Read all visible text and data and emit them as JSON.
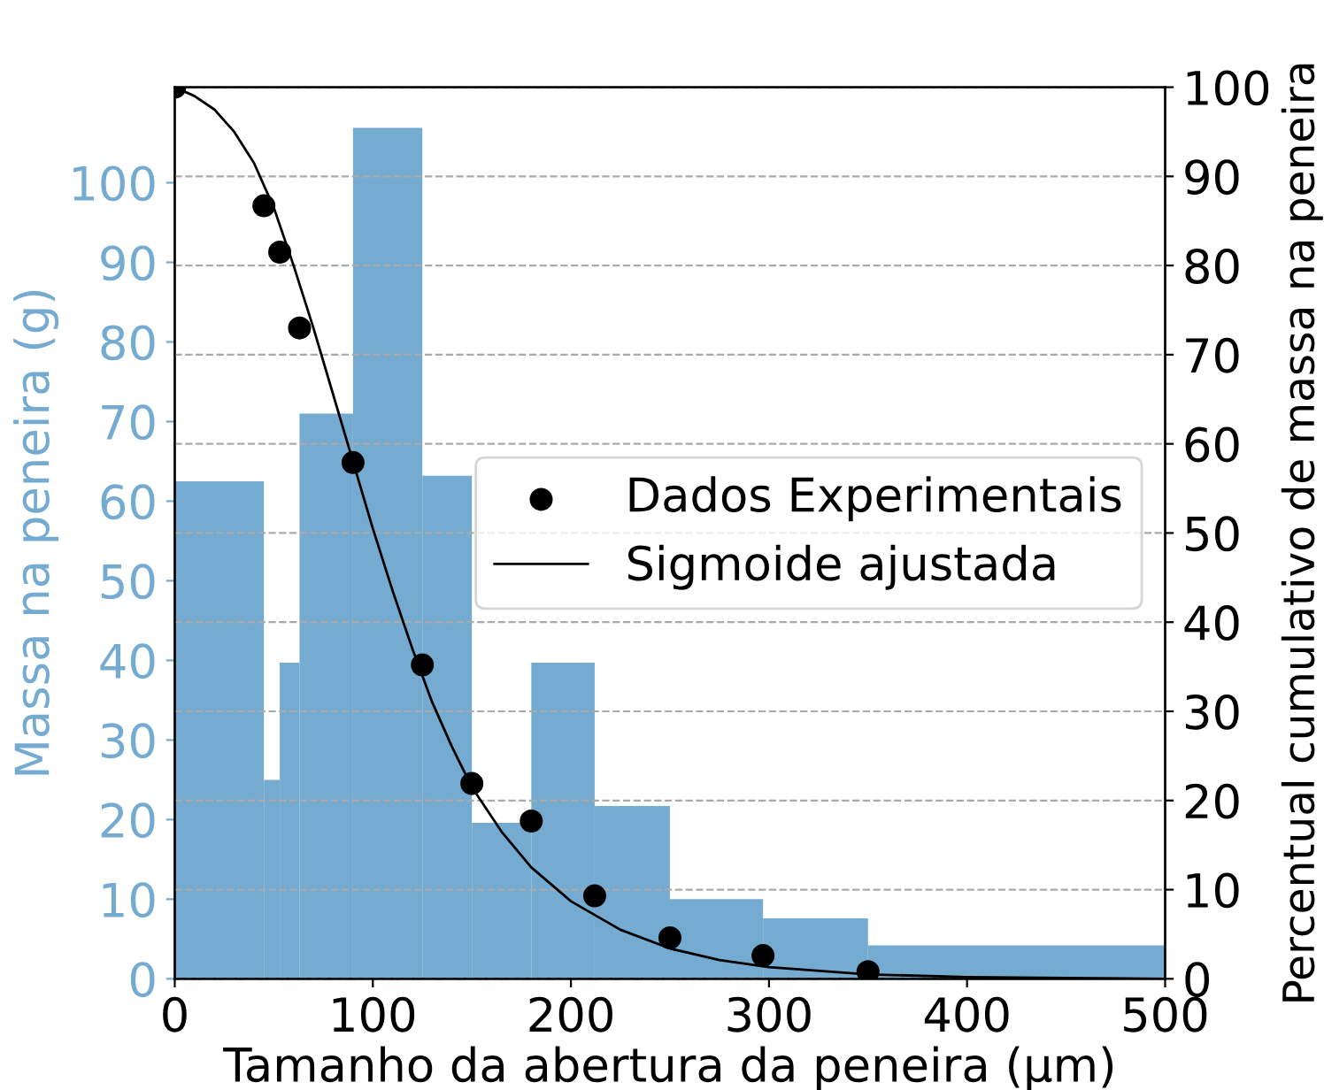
{
  "chart_data": {
    "type": "histogram",
    "xlabel": "Tamanho da abertura da peneira (µm)",
    "ylabel": "Massa na peneira (g)",
    "y2label": "Percentual cumulativo de massa na peneira",
    "bins": [
      0,
      45,
      53,
      63,
      90,
      125,
      150,
      180,
      212,
      250,
      297,
      350,
      500
    ],
    "values": [
      62.5,
      25,
      39.7,
      71,
      106.9,
      63.2,
      19.6,
      39.7,
      21.7,
      10,
      7.6,
      4.2
    ],
    "color": "#76abd1",
    "series": [
      {
        "name": "Dados Experimentais",
        "type": "scatter",
        "axis": "y2",
        "color": "#000000",
        "marker": "circle",
        "x": [
          0,
          45,
          53,
          63,
          90,
          125,
          150,
          180,
          212,
          250,
          297,
          350
        ],
        "values": [
          100,
          86.7,
          81.5,
          73,
          57.9,
          35.2,
          21.9,
          17.7,
          9.3,
          4.6,
          2.6,
          0.8
        ]
      },
      {
        "name": "Sigmoide ajustada",
        "type": "line",
        "axis": "y2",
        "color": "#000000",
        "x": [
          0,
          10,
          20,
          30,
          40,
          50,
          60,
          70,
          80,
          90,
          100,
          110,
          120,
          130,
          140,
          150,
          165,
          180,
          200,
          225,
          250,
          275,
          300,
          350,
          400,
          450,
          500
        ],
        "values": [
          100,
          99,
          97.5,
          95,
          91.5,
          86.5,
          80,
          73,
          65.5,
          58,
          50.5,
          43.5,
          37,
          31,
          26,
          21.5,
          16.5,
          12.5,
          8.7,
          5.5,
          3.4,
          2.1,
          1.3,
          0.5,
          0.2,
          0.1,
          0.0
        ]
      }
    ],
    "xlim": [
      0,
      500
    ],
    "xticks": [
      0,
      100,
      200,
      300,
      400,
      500
    ],
    "ylim": [
      0,
      112
    ],
    "yticks": [
      0,
      10,
      20,
      30,
      40,
      50,
      60,
      70,
      80,
      90,
      100
    ],
    "y2lim": [
      0,
      100
    ],
    "y2ticks": [
      0,
      10,
      20,
      30,
      40,
      50,
      60,
      70,
      80,
      90,
      100
    ],
    "grid": "y",
    "legend": "center right"
  }
}
